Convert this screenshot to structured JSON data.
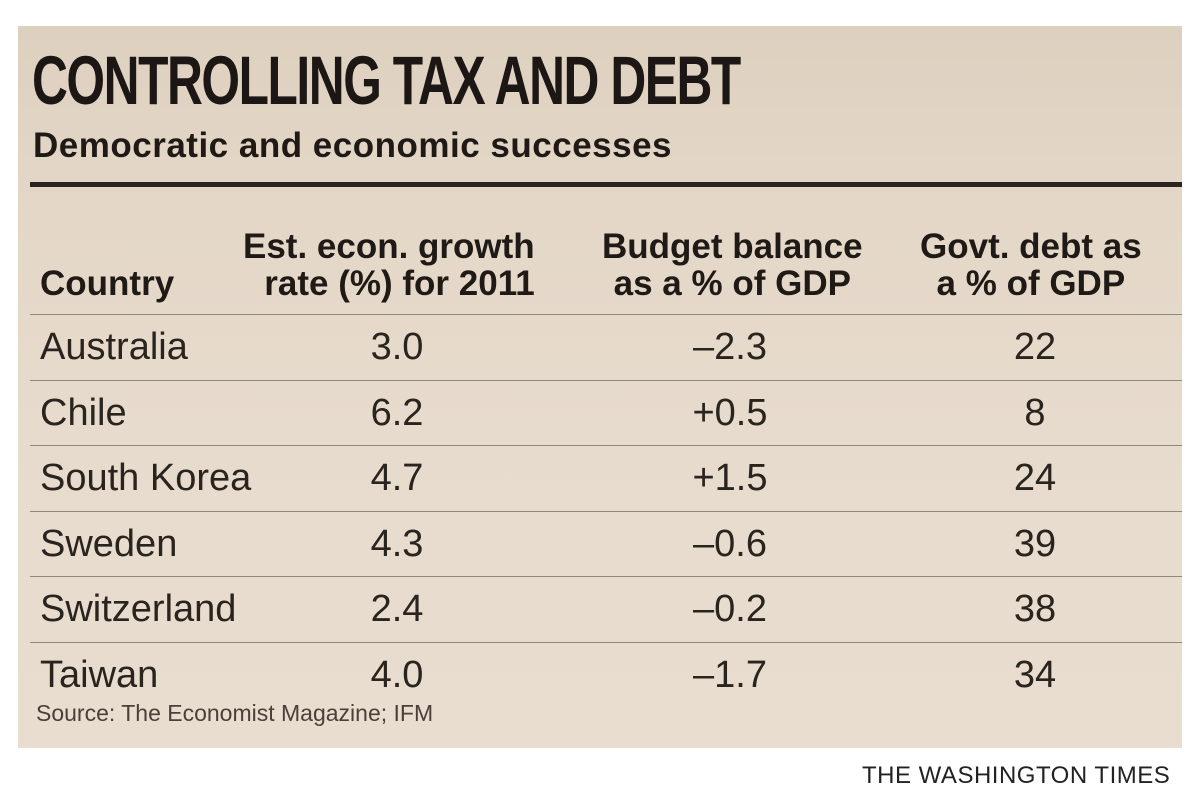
{
  "infographic": {
    "title": "CONTROLLING TAX AND DEBT",
    "subtitle": "Democratic and economic successes",
    "source": "Source: The Economist Magazine; IFM",
    "publisher": "THE WASHINGTON TIMES"
  },
  "table": {
    "headers": {
      "country": "Country",
      "growth": "Est. econ. growth\nrate (%) for 2011",
      "budget": "Budget balance\nas a % of GDP",
      "debt": "Govt. debt as\na % of GDP"
    },
    "rows": [
      {
        "country": "Australia",
        "growth": "3.0",
        "budget": "–2.3",
        "debt": "22"
      },
      {
        "country": "Chile",
        "growth": "6.2",
        "budget": "+0.5",
        "debt": "8"
      },
      {
        "country": "South Korea",
        "growth": "4.7",
        "budget": "+1.5",
        "debt": "24"
      },
      {
        "country": "Sweden",
        "growth": "4.3",
        "budget": "–0.6",
        "debt": "39"
      },
      {
        "country": "Switzerland",
        "growth": "2.4",
        "budget": "–0.2",
        "debt": "38"
      },
      {
        "country": "Taiwan",
        "growth": "4.0",
        "budget": "–1.7",
        "debt": "34"
      }
    ]
  }
}
